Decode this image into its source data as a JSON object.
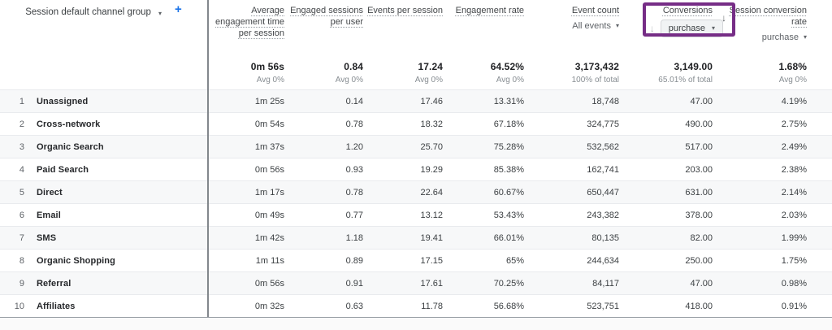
{
  "colors": {
    "highlight_purple": "#762d86",
    "add_button_blue": "#1a73e8"
  },
  "icons": {
    "sort_descending": "↓",
    "dropdown_caret": "▾",
    "add": "+"
  },
  "table": {
    "dimension": {
      "label": "Session default channel group"
    },
    "columns": [
      {
        "id": "avg-engagement-time",
        "label": "Average engagement time per session",
        "total": "0m 56s",
        "total_sub": "Avg 0%"
      },
      {
        "id": "engaged-sessions-per-user",
        "label": "Engaged sessions per user",
        "total": "0.84",
        "total_sub": "Avg 0%"
      },
      {
        "id": "events-per-session",
        "label": "Events per session",
        "total": "17.24",
        "total_sub": "Avg 0%"
      },
      {
        "id": "engagement-rate",
        "label": "Engagement rate",
        "total": "64.52%",
        "total_sub": "Avg 0%"
      },
      {
        "id": "event-count",
        "label": "Event count",
        "selector": "All events",
        "total": "3,173,432",
        "total_sub": "100% of total"
      },
      {
        "id": "conversions",
        "label": "Conversions",
        "selector": "purchase",
        "sorted": "descending",
        "highlighted": true,
        "total": "3,149.00",
        "total_sub": "65.01% of total"
      },
      {
        "id": "session-conversion-rate",
        "label": "Session conversion rate",
        "selector": "purchase",
        "sorted": "descending",
        "total": "1.68%",
        "total_sub": "Avg 0%"
      }
    ],
    "rows": [
      {
        "index": "1",
        "channel": "Unassigned",
        "values": [
          "1m 25s",
          "0.14",
          "17.46",
          "13.31%",
          "18,748",
          "47.00",
          "4.19%"
        ]
      },
      {
        "index": "2",
        "channel": "Cross-network",
        "values": [
          "0m 54s",
          "0.78",
          "18.32",
          "67.18%",
          "324,775",
          "490.00",
          "2.75%"
        ]
      },
      {
        "index": "3",
        "channel": "Organic Search",
        "values": [
          "1m 37s",
          "1.20",
          "25.70",
          "75.28%",
          "532,562",
          "517.00",
          "2.49%"
        ]
      },
      {
        "index": "4",
        "channel": "Paid Search",
        "values": [
          "0m 56s",
          "0.93",
          "19.29",
          "85.38%",
          "162,741",
          "203.00",
          "2.38%"
        ]
      },
      {
        "index": "5",
        "channel": "Direct",
        "values": [
          "1m 17s",
          "0.78",
          "22.64",
          "60.67%",
          "650,447",
          "631.00",
          "2.14%"
        ]
      },
      {
        "index": "6",
        "channel": "Email",
        "values": [
          "0m 49s",
          "0.77",
          "13.12",
          "53.43%",
          "243,382",
          "378.00",
          "2.03%"
        ]
      },
      {
        "index": "7",
        "channel": "SMS",
        "values": [
          "1m 42s",
          "1.18",
          "19.41",
          "66.01%",
          "80,135",
          "82.00",
          "1.99%"
        ]
      },
      {
        "index": "8",
        "channel": "Organic Shopping",
        "values": [
          "1m 11s",
          "0.89",
          "17.15",
          "65%",
          "244,634",
          "250.00",
          "1.75%"
        ]
      },
      {
        "index": "9",
        "channel": "Referral",
        "values": [
          "0m 56s",
          "0.91",
          "17.61",
          "70.25%",
          "84,117",
          "47.00",
          "0.98%"
        ]
      },
      {
        "index": "10",
        "channel": "Affiliates",
        "values": [
          "0m 32s",
          "0.63",
          "11.78",
          "56.68%",
          "523,751",
          "418.00",
          "0.91%"
        ]
      }
    ]
  }
}
